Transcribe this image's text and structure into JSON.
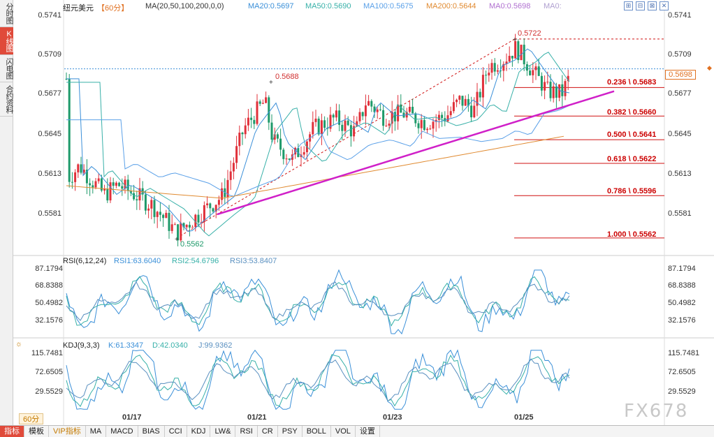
{
  "side_tabs": [
    "分时图",
    "K线图",
    "闪电图",
    "合约资料"
  ],
  "side_tab_active": 1,
  "header": {
    "symbol": "纽元美元",
    "period": "【60分】",
    "ma_title": "MA(20,50,100,200,0,0)",
    "ma20": "MA20:0.5697",
    "ma50": "MA50:0.5690",
    "ma100": "MA100:0.5675",
    "ma200": "MA200:0.5644",
    "ma0a": "MA0:0.5698",
    "ma0b": "MA0:"
  },
  "win_buttons": [
    "⊞",
    "⊟",
    "⊠",
    "✕"
  ],
  "price_axis": [
    "0.5741",
    "0.5709",
    "0.5677",
    "0.5645",
    "0.5613",
    "0.5581"
  ],
  "current_price": "0.5698",
  "peak_labels": {
    "high": "0.5722",
    "mid_high": "0.5688",
    "low": "0.5562"
  },
  "fib_levels": [
    {
      "ratio": "0.236",
      "value": "0.5683",
      "label": "0.236 \\ 0.5683"
    },
    {
      "ratio": "0.382",
      "value": "0.5660",
      "label": "0.382 \\ 0.5660"
    },
    {
      "ratio": "0.500",
      "value": "0.5641",
      "label": "0.500 \\ 0.5641"
    },
    {
      "ratio": "0.618",
      "value": "0.5622",
      "label": "0.618 \\ 0.5622"
    },
    {
      "ratio": "0.786",
      "value": "0.5596",
      "label": "0.786 \\ 0.5596"
    },
    {
      "ratio": "1.000",
      "value": "0.5562",
      "label": "1.000 \\ 0.5562"
    }
  ],
  "rsi": {
    "title": "RSI(6,12,24)",
    "rsi1": "RSI1:63.6040",
    "rsi2": "RSI2:54.6796",
    "rsi3": "RSI3:53.8407",
    "axis": [
      "87.1794",
      "68.8388",
      "50.4982",
      "32.1576"
    ]
  },
  "kdj": {
    "title": "KDJ(9,3,3)",
    "k": "K:61.3347",
    "d": "D:42.0340",
    "j": "J:99.9362",
    "axis": [
      "115.7481",
      "72.6505",
      "29.5529"
    ]
  },
  "x_axis": [
    "01/17",
    "01/21",
    "01/23",
    "01/25"
  ],
  "period_chip": "60分",
  "toolbar": [
    "指标",
    "模板",
    "VIP指标",
    "MA",
    "MACD",
    "BIAS",
    "CCI",
    "KDJ",
    "LW&",
    "RSI",
    "CR",
    "PSY",
    "BOLL",
    "VOL",
    "设置"
  ],
  "toolbar_active": 0,
  "watermark": "FX678",
  "colors": {
    "up": "#e0303a",
    "down": "#1e9a6a",
    "ma20": "#3a8fd8",
    "ma50": "#37b0a8",
    "ma100": "#5aa0e8",
    "ma200": "#e08a30",
    "trend": "#d020c8",
    "fib": "#d01010"
  }
}
